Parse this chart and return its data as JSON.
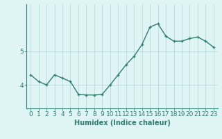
{
  "x": [
    0,
    1,
    2,
    3,
    4,
    5,
    6,
    7,
    8,
    9,
    10,
    11,
    12,
    13,
    14,
    15,
    16,
    17,
    18,
    19,
    20,
    21,
    22,
    23
  ],
  "y": [
    4.3,
    4.1,
    4.0,
    4.3,
    4.2,
    4.1,
    3.72,
    3.7,
    3.7,
    3.72,
    4.0,
    4.3,
    4.6,
    4.85,
    5.2,
    5.72,
    5.82,
    5.45,
    5.3,
    5.3,
    5.38,
    5.42,
    5.3,
    5.12
  ],
  "line_color": "#2e7d6e",
  "marker": "+",
  "marker_size": 3,
  "bg_color": "#dff4f4",
  "grid_color": "#b8dada",
  "xlabel": "Humidex (Indice chaleur)",
  "ylim": [
    3.3,
    6.4
  ],
  "xlim": [
    -0.5,
    23.5
  ],
  "yticks": [
    4,
    5
  ],
  "xticks": [
    0,
    1,
    2,
    3,
    4,
    5,
    6,
    7,
    8,
    9,
    10,
    11,
    12,
    13,
    14,
    15,
    16,
    17,
    18,
    19,
    20,
    21,
    22,
    23
  ],
  "xlabel_fontsize": 7,
  "tick_fontsize": 6.5,
  "linewidth": 1.0
}
